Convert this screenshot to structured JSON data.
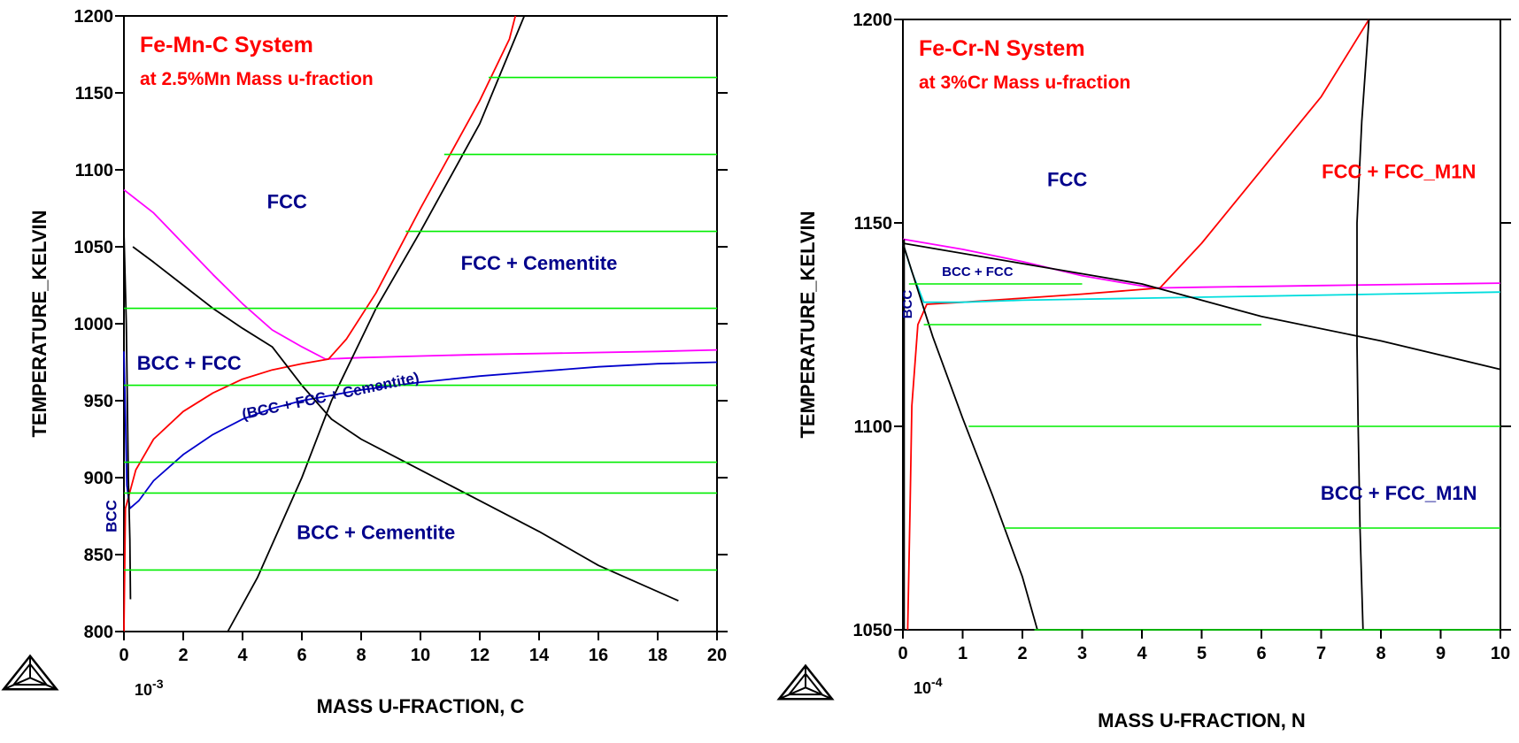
{
  "colors": {
    "axes": "#000000",
    "title": "#ff0000",
    "region_label": "#00008b",
    "red_label": "#ff0000",
    "logo": "#000000"
  },
  "logo": {
    "icon": "thermo-calc-triangle-logo"
  },
  "chart_data": [
    {
      "type": "line",
      "title": "Fe-Mn-C System",
      "subtitle": "at 2.5%Mn Mass u-fraction",
      "xlabel": "MASS U-FRACTION, C",
      "x_multiplier": "10",
      "x_multiplier_exp": "-3",
      "ylabel": "TEMPERATURE_KELVIN",
      "xlim": [
        0,
        20
      ],
      "ylim": [
        800,
        1200
      ],
      "xticks": [
        0,
        2,
        4,
        6,
        8,
        10,
        12,
        14,
        16,
        18,
        20
      ],
      "yticks": [
        800,
        850,
        900,
        950,
        1000,
        1050,
        1100,
        1150,
        1200
      ],
      "xtick_labels": [
        "0",
        "2",
        "4",
        "6",
        "8",
        "10",
        "12",
        "14",
        "16",
        "18",
        "20"
      ],
      "ytick_labels": [
        "800",
        "850",
        "900",
        "950",
        "1000",
        "1050",
        "1100",
        "1150",
        "1200"
      ],
      "series": [
        {
          "color": "#ff00ff",
          "points": [
            [
              0,
              1087
            ],
            [
              1,
              1072
            ],
            [
              2,
              1052
            ],
            [
              3,
              1032
            ],
            [
              4,
              1013
            ],
            [
              5,
              996
            ],
            [
              6,
              985
            ],
            [
              6.8,
              977
            ],
            [
              8,
              978
            ],
            [
              10,
              979
            ],
            [
              12,
              980
            ],
            [
              15,
              981
            ],
            [
              18,
              982
            ],
            [
              20,
              983
            ]
          ]
        },
        {
          "color": "#ff0000",
          "points": [
            [
              0,
              800
            ],
            [
              0.05,
              880
            ],
            [
              0.4,
              905
            ],
            [
              1,
              925
            ],
            [
              2,
              943
            ],
            [
              3,
              955
            ],
            [
              4,
              964
            ],
            [
              5,
              970
            ],
            [
              6,
              974
            ],
            [
              6.9,
              977
            ],
            [
              7.5,
              990
            ],
            [
              8.5,
              1020
            ],
            [
              10,
              1075
            ],
            [
              12,
              1145
            ],
            [
              13,
              1185
            ],
            [
              13.2,
              1200
            ]
          ]
        },
        {
          "color": "#0000cc",
          "points": [
            [
              0,
              982
            ],
            [
              0.05,
              940
            ],
            [
              0.1,
              895
            ],
            [
              0.2,
              880
            ],
            [
              0.5,
              885
            ],
            [
              1,
              898
            ],
            [
              2,
              915
            ],
            [
              3,
              928
            ],
            [
              4,
              938
            ],
            [
              5,
              945
            ],
            [
              6,
              950
            ],
            [
              8,
              957
            ],
            [
              10,
              962
            ],
            [
              12,
              966
            ],
            [
              14,
              969
            ],
            [
              16,
              972
            ],
            [
              18,
              974
            ],
            [
              20,
              975
            ]
          ]
        },
        {
          "color": "#000000",
          "points": [
            [
              0.3,
              1050
            ],
            [
              1,
              1040
            ],
            [
              2,
              1025
            ],
            [
              3,
              1010
            ],
            [
              4,
              997
            ],
            [
              5,
              985
            ],
            [
              6,
              960
            ],
            [
              7,
              938
            ],
            [
              8,
              925
            ],
            [
              10,
              905
            ],
            [
              12,
              885
            ],
            [
              14,
              865
            ],
            [
              16,
              843
            ],
            [
              18.7,
              820
            ]
          ]
        },
        {
          "color": "#000000",
          "points": [
            [
              3.5,
              800
            ],
            [
              4.5,
              835
            ],
            [
              6,
              900
            ],
            [
              7,
              950
            ],
            [
              8.5,
              1010
            ],
            [
              10,
              1060
            ],
            [
              12,
              1130
            ],
            [
              13.5,
              1200
            ]
          ]
        },
        {
          "color": "#000000",
          "points": [
            [
              0,
              1060
            ],
            [
              0.08,
              1000
            ],
            [
              0.15,
              900
            ],
            [
              0.2,
              860
            ],
            [
              0.22,
              821
            ]
          ]
        },
        {
          "color": "#00ee00",
          "points": [
            [
              0,
              840
            ],
            [
              20,
              840
            ]
          ]
        },
        {
          "color": "#00ee00",
          "points": [
            [
              0,
              890
            ],
            [
              20,
              890
            ]
          ]
        },
        {
          "color": "#00ee00",
          "points": [
            [
              0,
              910
            ],
            [
              20,
              910
            ]
          ]
        },
        {
          "color": "#00ee00",
          "points": [
            [
              0,
              960
            ],
            [
              20,
              960
            ]
          ]
        },
        {
          "color": "#00ee00",
          "points": [
            [
              0,
              1010
            ],
            [
              20,
              1010
            ]
          ]
        },
        {
          "color": "#00ee00",
          "points": [
            [
              9.5,
              1060
            ],
            [
              20,
              1060
            ]
          ]
        },
        {
          "color": "#00ee00",
          "points": [
            [
              10.8,
              1110
            ],
            [
              20,
              1110
            ]
          ]
        },
        {
          "color": "#00ee00",
          "points": [
            [
              12.3,
              1160
            ],
            [
              20,
              1160
            ]
          ]
        }
      ],
      "annotations": [
        {
          "text": "FCC",
          "x": 5.5,
          "y": 1075,
          "color": "#00008b",
          "size": "large",
          "rotate": 0
        },
        {
          "text": "FCC + Cementite",
          "x": 14,
          "y": 1035,
          "color": "#00008b",
          "size": "large",
          "rotate": 0
        },
        {
          "text": "BCC + FCC",
          "x": 2.2,
          "y": 970,
          "color": "#00008b",
          "size": "large",
          "rotate": 0
        },
        {
          "text": "(BCC + FCC + Cementite)",
          "x": 7,
          "y": 950,
          "color": "#00008b",
          "size": "medium",
          "rotate": -12
        },
        {
          "text": "BCC",
          "x": -0.25,
          "y": 875,
          "color": "#00008b",
          "size": "medium",
          "rotate": -90
        },
        {
          "text": "BCC + Cementite",
          "x": 8.5,
          "y": 860,
          "color": "#00008b",
          "size": "large",
          "rotate": 0
        }
      ]
    },
    {
      "type": "line",
      "title": "Fe-Cr-N System",
      "subtitle": "at 3%Cr Mass u-fraction",
      "xlabel": "MASS U-FRACTION, N",
      "x_multiplier": "10",
      "x_multiplier_exp": "-4",
      "ylabel": "TEMPERATURE_KELVIN",
      "xlim": [
        0,
        10
      ],
      "ylim": [
        1050,
        1200
      ],
      "xticks": [
        0,
        1,
        2,
        3,
        4,
        5,
        6,
        7,
        8,
        9,
        10
      ],
      "yticks": [
        1050,
        1100,
        1150,
        1200
      ],
      "xtick_labels": [
        "0",
        "1",
        "2",
        "3",
        "4",
        "5",
        "6",
        "7",
        "8",
        "9",
        "10"
      ],
      "ytick_labels": [
        "1050",
        "1100",
        "1150",
        "1200"
      ],
      "series": [
        {
          "color": "#ff00ff",
          "points": [
            [
              0,
              1146
            ],
            [
              1,
              1143.5
            ],
            [
              2,
              1140.5
            ],
            [
              3,
              1137
            ],
            [
              4.2,
              1134
            ],
            [
              5,
              1134.2
            ],
            [
              6,
              1134.4
            ],
            [
              7,
              1134.6
            ],
            [
              8,
              1134.8
            ],
            [
              9,
              1135
            ],
            [
              10,
              1135.2
            ]
          ]
        },
        {
          "color": "#ff0000",
          "points": [
            [
              0.08,
              1050
            ],
            [
              0.12,
              1080
            ],
            [
              0.15,
              1105
            ],
            [
              0.25,
              1125
            ],
            [
              0.4,
              1130
            ],
            [
              1,
              1130.5
            ],
            [
              2,
              1131.5
            ],
            [
              3,
              1132.5
            ],
            [
              4.3,
              1134
            ],
            [
              5,
              1145
            ],
            [
              6,
              1163
            ],
            [
              7,
              1181
            ],
            [
              7.8,
              1200
            ]
          ]
        },
        {
          "color": "#00dddd",
          "points": [
            [
              0,
              1145
            ],
            [
              0.15,
              1138
            ],
            [
              0.35,
              1130.5
            ],
            [
              1,
              1130.5
            ],
            [
              2,
              1131
            ],
            [
              4,
              1131.5
            ],
            [
              6,
              1132
            ],
            [
              8,
              1132.5
            ],
            [
              10,
              1133
            ]
          ]
        },
        {
          "color": "#000000",
          "points": [
            [
              0,
              1145
            ],
            [
              2,
              1140
            ],
            [
              4,
              1135
            ],
            [
              6,
              1127
            ],
            [
              8,
              1121
            ],
            [
              10,
              1114
            ]
          ]
        },
        {
          "color": "#000000",
          "points": [
            [
              0,
              1145
            ],
            [
              0.5,
              1122
            ],
            [
              1,
              1102
            ],
            [
              1.5,
              1083
            ],
            [
              2,
              1063
            ],
            [
              2.25,
              1050
            ]
          ]
        },
        {
          "color": "#000000",
          "points": [
            [
              7.8,
              1200
            ],
            [
              7.68,
              1175
            ],
            [
              7.6,
              1150
            ],
            [
              7.6,
              1120
            ],
            [
              7.62,
              1100
            ],
            [
              7.65,
              1075
            ],
            [
              7.7,
              1050
            ]
          ]
        },
        {
          "color": "#000000",
          "points": [
            [
              0.02,
              1050
            ],
            [
              0.02,
              1146
            ]
          ]
        },
        {
          "color": "#00ee00",
          "points": [
            [
              2.2,
              1050
            ],
            [
              10,
              1050
            ]
          ]
        },
        {
          "color": "#00ee00",
          "points": [
            [
              1.7,
              1075
            ],
            [
              10,
              1075
            ]
          ]
        },
        {
          "color": "#00ee00",
          "points": [
            [
              1.1,
              1100
            ],
            [
              10,
              1100
            ]
          ]
        },
        {
          "color": "#00ee00",
          "points": [
            [
              0.35,
              1125
            ],
            [
              6,
              1125
            ]
          ]
        },
        {
          "color": "#00ee00",
          "points": [
            [
              0.1,
              1135
            ],
            [
              3,
              1135
            ]
          ]
        }
      ],
      "annotations": [
        {
          "text": "FCC",
          "x": 2.75,
          "y": 1159,
          "color": "#00008b",
          "size": "large",
          "rotate": 0
        },
        {
          "text": "FCC + FCC_M1N",
          "x": 8.3,
          "y": 1161,
          "color": "#ff0000",
          "size": "large",
          "rotate": 0
        },
        {
          "text": "BCC + FCC",
          "x": 1.25,
          "y": 1137,
          "color": "#00008b",
          "size": "small",
          "rotate": 0
        },
        {
          "text": "BCC",
          "x": 0.15,
          "y": 1130,
          "color": "#00008b",
          "size": "small",
          "rotate": -90
        },
        {
          "text": "BCC + FCC_M1N",
          "x": 8.3,
          "y": 1082,
          "color": "#00008b",
          "size": "large",
          "rotate": 0
        }
      ]
    }
  ]
}
